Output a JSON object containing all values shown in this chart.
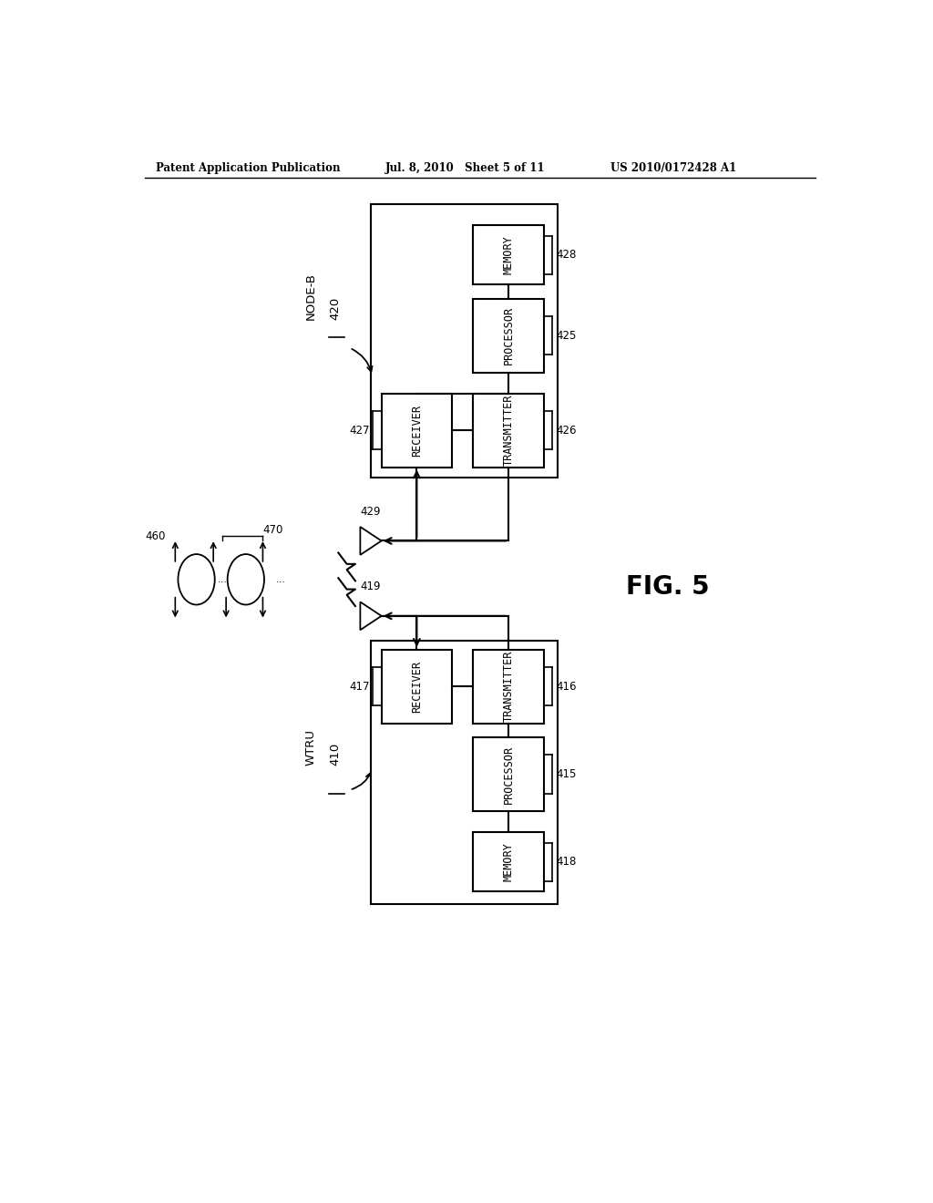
{
  "bg_color": "#ffffff",
  "header_left": "Patent Application Publication",
  "header_mid": "Jul. 8, 2010   Sheet 5 of 11",
  "header_right": "US 2010/0172428 A1",
  "fig_label": "FIG. 5",
  "node_b_label": "NODE-B",
  "node_b_num": "420",
  "wtru_label": "WTRU",
  "wtru_num": "410",
  "nb_memory_label": "MEMORY",
  "nb_memory_num": "428",
  "nb_processor_label": "PROCESSOR",
  "nb_processor_num": "425",
  "nb_receiver_label": "RECEIVER",
  "nb_receiver_num": "427",
  "nb_transmitter_label": "TRANSMITTER",
  "nb_transmitter_num": "426",
  "ue_memory_label": "MEMORY",
  "ue_memory_num": "418",
  "ue_processor_label": "PROCESSOR",
  "ue_processor_num": "415",
  "ue_receiver_label": "RECEIVER",
  "ue_receiver_num": "417",
  "ue_transmitter_label": "TRANSMITTER",
  "ue_transmitter_num": "416",
  "antenna_nb_num": "429",
  "antenna_ue_num": "419",
  "channel_num": "470",
  "spectrum_num": "460"
}
